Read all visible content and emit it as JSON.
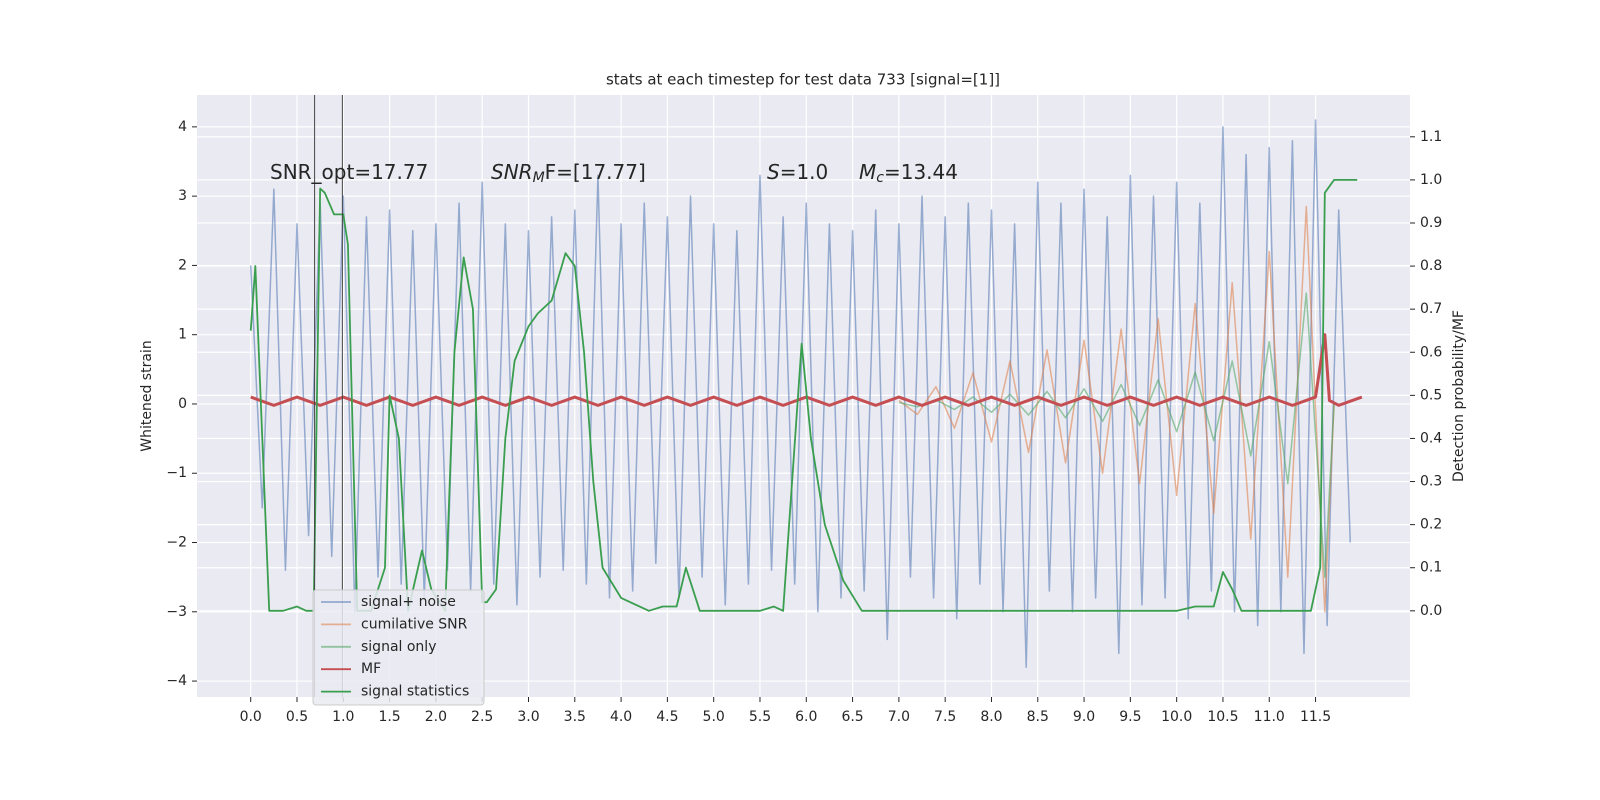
{
  "chart_data": {
    "type": "line",
    "title": "stats at each timestep for test data 733 [signal=[1]]",
    "ylabel": "Whitened strain",
    "y2label": "Detection probability/MF",
    "xlim": [
      -0.58,
      12.52
    ],
    "ylim": [
      -4.23,
      4.46
    ],
    "y2lim": [
      -0.2,
      1.197
    ],
    "grid": true,
    "background": "#eaeaf2",
    "xticks": [
      {
        "value": 0,
        "label": "0.0"
      },
      {
        "value": 0.5,
        "label": "0.5"
      },
      {
        "value": 1,
        "label": "1.0"
      },
      {
        "value": 1.5,
        "label": "1.5"
      },
      {
        "value": 2,
        "label": "2.0"
      },
      {
        "value": 2.5,
        "label": "2.5"
      },
      {
        "value": 3,
        "label": "3.0"
      },
      {
        "value": 3.5,
        "label": "3.5"
      },
      {
        "value": 4,
        "label": "4.0"
      },
      {
        "value": 4.5,
        "label": "4.5"
      },
      {
        "value": 5,
        "label": "5.0"
      },
      {
        "value": 5.5,
        "label": "5.5"
      },
      {
        "value": 6,
        "label": "6.0"
      },
      {
        "value": 6.5,
        "label": "6.5"
      },
      {
        "value": 7,
        "label": "7.0"
      },
      {
        "value": 7.5,
        "label": "7.5"
      },
      {
        "value": 8,
        "label": "8.0"
      },
      {
        "value": 8.5,
        "label": "8.5"
      },
      {
        "value": 9,
        "label": "9.0"
      },
      {
        "value": 9.5,
        "label": "9.5"
      },
      {
        "value": 10,
        "label": "10.0"
      },
      {
        "value": 10.5,
        "label": "10.5"
      },
      {
        "value": 11,
        "label": "11.0"
      },
      {
        "value": 11.5,
        "label": "11.5"
      }
    ],
    "yticks": [
      {
        "value": -4,
        "label": "−4"
      },
      {
        "value": -3,
        "label": "−3"
      },
      {
        "value": -2,
        "label": "−2"
      },
      {
        "value": -1,
        "label": "−1"
      },
      0,
      1,
      2,
      3,
      4
    ],
    "y2ticks": [
      {
        "value": 0,
        "label": "0.0"
      },
      {
        "value": 0.1,
        "label": "0.1"
      },
      {
        "value": 0.2,
        "label": "0.2"
      },
      {
        "value": 0.3,
        "label": "0.3"
      },
      {
        "value": 0.4,
        "label": "0.4"
      },
      {
        "value": 0.5,
        "label": "0.5"
      },
      {
        "value": 0.6,
        "label": "0.6"
      },
      {
        "value": 0.7,
        "label": "0.7"
      },
      {
        "value": 0.8,
        "label": "0.8"
      },
      {
        "value": 0.9,
        "label": "0.9"
      },
      {
        "value": 1.0,
        "label": "1.0"
      },
      {
        "value": 1.1,
        "label": "1.1"
      }
    ],
    "annotations": [
      {
        "base": "SNR_opt=17.77"
      },
      {
        "base": "SNR",
        "sub": "M",
        "rest": "F=[17.77]"
      },
      {
        "base": "S",
        "rest": "=1.0"
      },
      {
        "base": "M",
        "sub": "c",
        "rest": "=13.44"
      }
    ],
    "vlines": [
      0.69,
      0.99
    ],
    "vline_color": "#444444",
    "legend": "lower left",
    "series": [
      {
        "name": "signal+ noise",
        "color": "#4c72b0",
        "opacity": 0.55,
        "x": [
          0,
          0.125,
          0.25,
          0.375,
          0.5,
          0.625,
          0.75,
          0.875,
          1,
          1.125,
          1.25,
          1.375,
          1.5,
          1.625,
          1.75,
          1.875,
          2,
          2.125,
          2.25,
          2.375,
          2.5,
          2.625,
          2.75,
          2.875,
          3,
          3.125,
          3.25,
          3.375,
          3.5,
          3.625,
          3.75,
          3.875,
          4,
          4.125,
          4.25,
          4.375,
          4.5,
          4.625,
          4.75,
          4.875,
          5,
          5.125,
          5.25,
          5.375,
          5.5,
          5.625,
          5.75,
          5.875,
          6,
          6.125,
          6.25,
          6.375,
          6.5,
          6.625,
          6.75,
          6.875,
          7,
          7.125,
          7.25,
          7.375,
          7.5,
          7.625,
          7.75,
          7.875,
          8,
          8.125,
          8.25,
          8.375,
          8.5,
          8.625,
          8.75,
          8.875,
          9,
          9.125,
          9.25,
          9.375,
          9.5,
          9.625,
          9.75,
          9.875,
          10,
          10.125,
          10.25,
          10.375,
          10.5,
          10.625,
          10.75,
          10.875,
          11,
          11.125,
          11.25,
          11.375,
          11.5,
          11.625,
          11.75,
          11.875
        ],
        "values": [
          2.0,
          -1.5,
          3.1,
          -2.4,
          2.6,
          -1.9,
          2.9,
          -2.2,
          3.0,
          -3.0,
          2.7,
          -2.5,
          2.8,
          -2.6,
          2.5,
          -2.8,
          2.6,
          -2.4,
          2.9,
          -2.7,
          3.2,
          -2.6,
          2.6,
          -2.9,
          2.5,
          -2.5,
          2.7,
          -2.4,
          2.8,
          -2.6,
          3.3,
          -2.8,
          2.6,
          -2.7,
          2.9,
          -2.3,
          2.7,
          -2.8,
          3.0,
          -2.5,
          2.6,
          -2.9,
          2.5,
          -2.6,
          3.3,
          -2.4,
          2.7,
          -2.6,
          2.9,
          -3.0,
          2.6,
          -2.8,
          2.5,
          -2.7,
          2.8,
          -3.4,
          2.6,
          -2.5,
          3.0,
          -2.8,
          2.7,
          -3.1,
          2.9,
          -2.6,
          2.8,
          -3.0,
          2.6,
          -3.8,
          3.2,
          -2.7,
          2.9,
          -3.0,
          3.1,
          -2.8,
          2.7,
          -3.6,
          3.3,
          -2.9,
          3.0,
          -2.8,
          3.2,
          -3.1,
          2.9,
          -2.7,
          4.0,
          -3.0,
          3.6,
          -3.2,
          3.7,
          -3.0,
          3.8,
          -3.6,
          4.1,
          -3.2,
          2.8,
          -2.0
        ]
      },
      {
        "name": "cumilative SNR",
        "color": "#dd8452",
        "opacity": 0.6,
        "x": [
          7.0,
          7.2,
          7.4,
          7.6,
          7.8,
          8.0,
          8.2,
          8.4,
          8.6,
          8.8,
          9.0,
          9.2,
          9.4,
          9.6,
          9.8,
          10.0,
          10.2,
          10.4,
          10.6,
          10.8,
          11.0,
          11.2,
          11.4,
          11.6,
          11.7
        ],
        "values": [
          0.05,
          -0.15,
          0.25,
          -0.35,
          0.45,
          -0.55,
          0.62,
          -0.7,
          0.78,
          -0.85,
          0.92,
          -1.0,
          1.08,
          -1.15,
          1.23,
          -1.32,
          1.45,
          -1.58,
          1.75,
          -1.95,
          2.2,
          -2.5,
          2.85,
          -3.0,
          0
        ]
      },
      {
        "name": "signal only",
        "color": "#55a868",
        "opacity": 0.6,
        "x": [
          7.0,
          7.2,
          7.4,
          7.6,
          7.8,
          8.0,
          8.2,
          8.4,
          8.6,
          8.8,
          9.0,
          9.2,
          9.4,
          9.6,
          9.8,
          10.0,
          10.2,
          10.4,
          10.6,
          10.8,
          11.0,
          11.2,
          11.4,
          11.6,
          11.7
        ],
        "values": [
          0.02,
          -0.04,
          0.06,
          -0.08,
          0.1,
          -0.12,
          0.14,
          -0.16,
          0.18,
          -0.2,
          0.22,
          -0.25,
          0.28,
          -0.31,
          0.35,
          -0.4,
          0.46,
          -0.53,
          0.62,
          -0.75,
          0.9,
          -1.15,
          1.6,
          -2.5,
          0
        ]
      },
      {
        "name": "MF",
        "color": "#c44e52",
        "opacity": 1,
        "x": [
          0,
          0.25,
          0.5,
          0.75,
          1,
          1.25,
          1.5,
          1.75,
          2,
          2.25,
          2.5,
          2.75,
          3,
          3.25,
          3.5,
          3.75,
          4,
          4.25,
          4.5,
          4.75,
          5,
          5.25,
          5.5,
          5.75,
          6,
          6.25,
          6.5,
          6.75,
          7,
          7.25,
          7.5,
          7.75,
          8,
          8.25,
          8.5,
          8.75,
          9,
          9.25,
          9.5,
          9.75,
          10,
          10.25,
          10.5,
          10.75,
          11,
          11.25,
          11.5,
          11.6,
          11.65,
          11.75,
          12.0
        ],
        "values": [
          0.1,
          -0.02,
          0.1,
          -0.02,
          0.1,
          -0.02,
          0.1,
          -0.02,
          0.1,
          -0.02,
          0.1,
          -0.02,
          0.1,
          -0.02,
          0.1,
          -0.02,
          0.1,
          -0.02,
          0.1,
          -0.02,
          0.1,
          -0.02,
          0.1,
          -0.02,
          0.1,
          -0.02,
          0.1,
          -0.02,
          0.1,
          -0.02,
          0.1,
          -0.02,
          0.1,
          -0.02,
          0.1,
          -0.02,
          0.1,
          -0.02,
          0.1,
          -0.02,
          0.1,
          -0.02,
          0.1,
          -0.02,
          0.1,
          -0.02,
          0.1,
          1.0,
          0.05,
          -0.02,
          0.1
        ]
      },
      {
        "name": "signal statistics",
        "color": "#3a9e4f",
        "opacity": 1,
        "axis": "y2",
        "x": [
          0,
          0.05,
          0.2,
          0.35,
          0.5,
          0.6,
          0.68,
          0.75,
          0.8,
          0.9,
          1.0,
          1.05,
          1.15,
          1.3,
          1.45,
          1.5,
          1.6,
          1.7,
          1.85,
          1.95,
          2.1,
          2.2,
          2.3,
          2.4,
          2.5,
          2.55,
          2.65,
          2.75,
          2.85,
          3.0,
          3.1,
          3.25,
          3.4,
          3.5,
          3.6,
          3.7,
          3.8,
          4.0,
          4.3,
          4.45,
          4.6,
          4.7,
          4.85,
          5.0,
          5.5,
          5.65,
          5.75,
          5.95,
          6.05,
          6.2,
          6.4,
          6.6,
          7.0,
          10.0,
          10.2,
          10.4,
          10.5,
          10.6,
          10.7,
          10.9,
          11.45,
          11.55,
          11.6,
          11.7,
          11.95
        ],
        "values": [
          0.65,
          0.8,
          0.0,
          0.0,
          0.01,
          0.0,
          0.0,
          0.98,
          0.97,
          0.92,
          0.92,
          0.85,
          0.0,
          0.0,
          0.1,
          0.5,
          0.4,
          0.0,
          0.14,
          0.05,
          0.0,
          0.6,
          0.82,
          0.7,
          0.02,
          0.02,
          0.05,
          0.4,
          0.58,
          0.66,
          0.69,
          0.72,
          0.83,
          0.8,
          0.6,
          0.3,
          0.1,
          0.03,
          0.0,
          0.01,
          0.01,
          0.1,
          0.0,
          0.0,
          0.0,
          0.01,
          0.0,
          0.62,
          0.4,
          0.2,
          0.07,
          0.0,
          0.0,
          0.0,
          0.01,
          0.01,
          0.09,
          0.05,
          0.0,
          0.0,
          0.0,
          0.1,
          0.97,
          1.0,
          1.0
        ]
      }
    ]
  }
}
